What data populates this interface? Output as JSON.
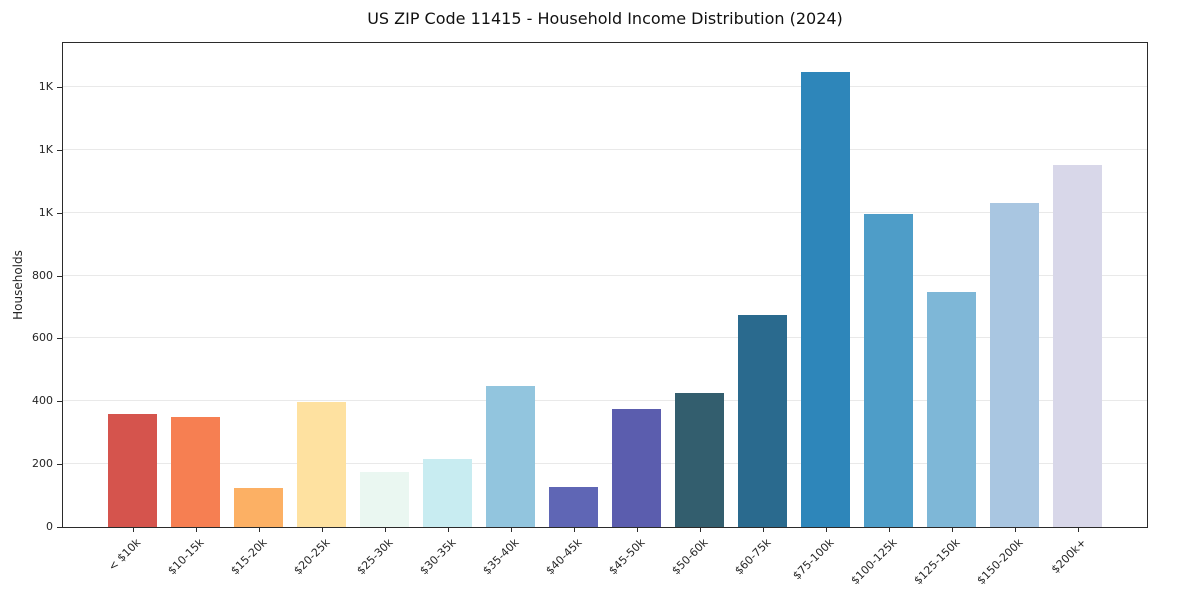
{
  "figure": {
    "title": "US ZIP Code 11415 - Household Income Distribution (2024)",
    "ylabel": "Households"
  },
  "chart_data": {
    "type": "bar",
    "title": "US ZIP Code 11415 - Household Income Distribution (2024)",
    "xlabel": "",
    "ylabel": "Households",
    "grid": "horizontal",
    "legend": "none",
    "ylim": [
      0,
      1540
    ],
    "yticks": [
      {
        "value": 0,
        "label": "0"
      },
      {
        "value": 200,
        "label": "200"
      },
      {
        "value": 400,
        "label": "400"
      },
      {
        "value": 600,
        "label": "600"
      },
      {
        "value": 800,
        "label": "800"
      },
      {
        "value": 1000,
        "label": "1K"
      },
      {
        "value": 1200,
        "label": "1K"
      },
      {
        "value": 1400,
        "label": "1K"
      }
    ],
    "categories": [
      "< $10k",
      "$10-15k",
      "$15-20k",
      "$20-25k",
      "$25-30k",
      "$30-35k",
      "$35-40k",
      "$40-45k",
      "$45-50k",
      "$50-60k",
      "$60-75k",
      "$75-100k",
      "$100-125k",
      "$125-150k",
      "$150-200k",
      "$200k+"
    ],
    "values": [
      360,
      350,
      125,
      398,
      175,
      218,
      448,
      127,
      375,
      427,
      676,
      1449,
      995,
      749,
      1032,
      1152
    ],
    "bar_colors": [
      "#d5544d",
      "#f67f52",
      "#fcb064",
      "#fee1a0",
      "#eaf7f1",
      "#c8ecf1",
      "#92c5de",
      "#5f66b5",
      "#5b5dae",
      "#335e6e",
      "#2a6a8e",
      "#2e86ba",
      "#4e9dc8",
      "#7eb7d7",
      "#a9c6e1",
      "#d8d7e9"
    ]
  }
}
